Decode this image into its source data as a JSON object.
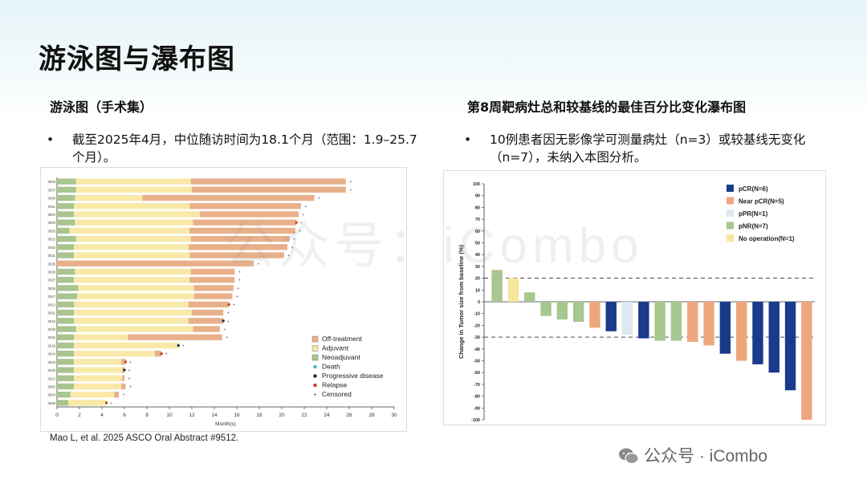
{
  "slide": {
    "title": "游泳图与瀑布图",
    "citation": "Mao L, et al. 2025 ASCO Oral Abstract #9512.",
    "watermark": "公众号 · iCombo",
    "watermark_center": "公众号：iCombo"
  },
  "left": {
    "heading": "游泳图（手术集）",
    "bullet": "截至2025年4月，中位随访时间为18.1个月（范围：1.9–25.7个月）。"
  },
  "right": {
    "heading": "第8周靶病灶总和较基线的最佳百分比变化瀑布图",
    "bullet": "10例患者因无影像学可测量病灶（n=3）或较基线无变化（n=7），未纳入本图分析。"
  },
  "colors": {
    "off": "#e8b08a",
    "adj": "#f8e9a8",
    "neo": "#a8c68f",
    "pcr": "#1a3a8a",
    "near": "#eea77c",
    "ppr": "#dde9f0",
    "pnr": "#a8c68f",
    "noop": "#f8e79b",
    "relapse": "#c0392b",
    "pd": "#1a2a4a"
  },
  "chart_data": [
    {
      "type": "bar",
      "subtype": "swimmer",
      "xlabel": "Month(s)",
      "xlim": [
        0,
        30
      ],
      "xticks": [
        0,
        2,
        4,
        6,
        8,
        10,
        12,
        14,
        16,
        18,
        20,
        22,
        24,
        26,
        28,
        30
      ],
      "legend": [
        "Off-treatment",
        "Adjuvant",
        "Neoadjuvant",
        "Death",
        "Progressive disease",
        "Relapse",
        "Censored"
      ],
      "legend_position": "bottom-right",
      "patients": [
        {
          "id": "0003",
          "neo": 1.7,
          "adj": 10.2,
          "total": 25.7,
          "event": "censored"
        },
        {
          "id": "0007",
          "neo": 1.7,
          "adj": 10.3,
          "total": 25.7,
          "event": "censored"
        },
        {
          "id": "0006",
          "neo": 1.6,
          "adj": 6.0,
          "total": 22.9,
          "event": "censored"
        },
        {
          "id": "0011",
          "neo": 1.5,
          "adj": 10.3,
          "total": 21.7,
          "event": "censored"
        },
        {
          "id": "0004",
          "neo": 1.5,
          "adj": 11.2,
          "total": 21.5,
          "event": "censored"
        },
        {
          "id": "0003",
          "neo": 1.6,
          "adj": 10.5,
          "total": 21.3,
          "event": "relapse"
        },
        {
          "id": "0005",
          "neo": 1.1,
          "adj": 10.7,
          "total": 21.2,
          "event": "censored"
        },
        {
          "id": "0022",
          "neo": 1.7,
          "adj": 10.2,
          "total": 20.7,
          "event": "censored"
        },
        {
          "id": "0010",
          "neo": 1.5,
          "adj": 10.2,
          "total": 20.5,
          "event": "censored"
        },
        {
          "id": "0021",
          "neo": 1.5,
          "adj": 10.3,
          "total": 20.2,
          "event": "censored"
        },
        {
          "id": "0025",
          "neo": 0,
          "adj": 0,
          "total": 17.5,
          "event": "censored"
        },
        {
          "id": "0026",
          "neo": 1.6,
          "adj": 10.3,
          "total": 15.8,
          "event": "censored"
        },
        {
          "id": "0027",
          "neo": 1.5,
          "adj": 10.3,
          "total": 15.8,
          "event": "censored"
        },
        {
          "id": "0028",
          "neo": 1.9,
          "adj": 10.3,
          "total": 15.7,
          "event": "censored"
        },
        {
          "id": "0017",
          "neo": 1.8,
          "adj": 10.4,
          "total": 15.6,
          "event": "censored"
        },
        {
          "id": "0013",
          "neo": 1.5,
          "adj": 10.2,
          "total": 15.3,
          "event": "relapse"
        },
        {
          "id": "0031",
          "neo": 1.5,
          "adj": 10.5,
          "total": 14.8,
          "event": "censored"
        },
        {
          "id": "0015",
          "neo": 1.5,
          "adj": 10.2,
          "total": 14.8,
          "event": "progressive"
        },
        {
          "id": "0029",
          "neo": 1.7,
          "adj": 10.4,
          "total": 14.5,
          "event": "censored"
        },
        {
          "id": "0032",
          "neo": 1.5,
          "adj": 4.8,
          "total": 14.7,
          "event": "censored"
        },
        {
          "id": "0018",
          "neo": 1.5,
          "adj": 9.4,
          "total": 10.8,
          "event": "progressive"
        },
        {
          "id": "0024",
          "neo": 1.5,
          "adj": 7.2,
          "total": 9.3,
          "event": "relapse"
        },
        {
          "id": "0023",
          "neo": 1.5,
          "adj": 4.2,
          "total": 6.1,
          "event": "relapse"
        },
        {
          "id": "0030",
          "neo": 1.5,
          "adj": 4.3,
          "total": 6.0,
          "event": "progressive"
        },
        {
          "id": "0012",
          "neo": 1.5,
          "adj": 4.3,
          "total": 6.0,
          "event": "censored"
        },
        {
          "id": "0002",
          "neo": 1.5,
          "adj": 4.2,
          "total": 6.1,
          "event": "censored"
        },
        {
          "id": "0004",
          "neo": 1.2,
          "adj": 3.9,
          "total": 5.5,
          "event": "censored"
        },
        {
          "id": "0008",
          "neo": 1.0,
          "adj": 3.4,
          "total": 4.4,
          "event": "relapse"
        }
      ]
    },
    {
      "type": "bar",
      "subtype": "waterfall",
      "ylabel": "Change in Tumor size from baseline (%)",
      "ylim": [
        -100,
        100
      ],
      "yticks": [
        100,
        90,
        80,
        70,
        60,
        50,
        40,
        30,
        20,
        10,
        0,
        -10,
        -20,
        -30,
        -40,
        -50,
        -60,
        -70,
        -80,
        -90,
        -100
      ],
      "reference_lines": [
        20,
        -30
      ],
      "legend": [
        {
          "key": "pCR",
          "label": "pCR(N=6)"
        },
        {
          "key": "near",
          "label": "Near pCR(N=5)"
        },
        {
          "key": "ppr",
          "label": "pPR(N=1)"
        },
        {
          "key": "pnr",
          "label": "pNR(N=7)"
        },
        {
          "key": "noop",
          "label": "No operation(N=1)"
        }
      ],
      "legend_position": "top-right",
      "bars": [
        {
          "value": 27,
          "group": "pnr"
        },
        {
          "value": 20,
          "group": "noop"
        },
        {
          "value": 8,
          "group": "pnr"
        },
        {
          "value": -12,
          "group": "pnr"
        },
        {
          "value": -15,
          "group": "pnr"
        },
        {
          "value": -17,
          "group": "pnr"
        },
        {
          "value": -22,
          "group": "near"
        },
        {
          "value": -25,
          "group": "pCR"
        },
        {
          "value": -28,
          "group": "ppr"
        },
        {
          "value": -31,
          "group": "pCR"
        },
        {
          "value": -33,
          "group": "pnr"
        },
        {
          "value": -33,
          "group": "pnr"
        },
        {
          "value": -34,
          "group": "near"
        },
        {
          "value": -37,
          "group": "near"
        },
        {
          "value": -44,
          "group": "pCR"
        },
        {
          "value": -50,
          "group": "near"
        },
        {
          "value": -53,
          "group": "pCR"
        },
        {
          "value": -60,
          "group": "pCR"
        },
        {
          "value": -75,
          "group": "pCR"
        },
        {
          "value": -100,
          "group": "near"
        }
      ]
    }
  ]
}
